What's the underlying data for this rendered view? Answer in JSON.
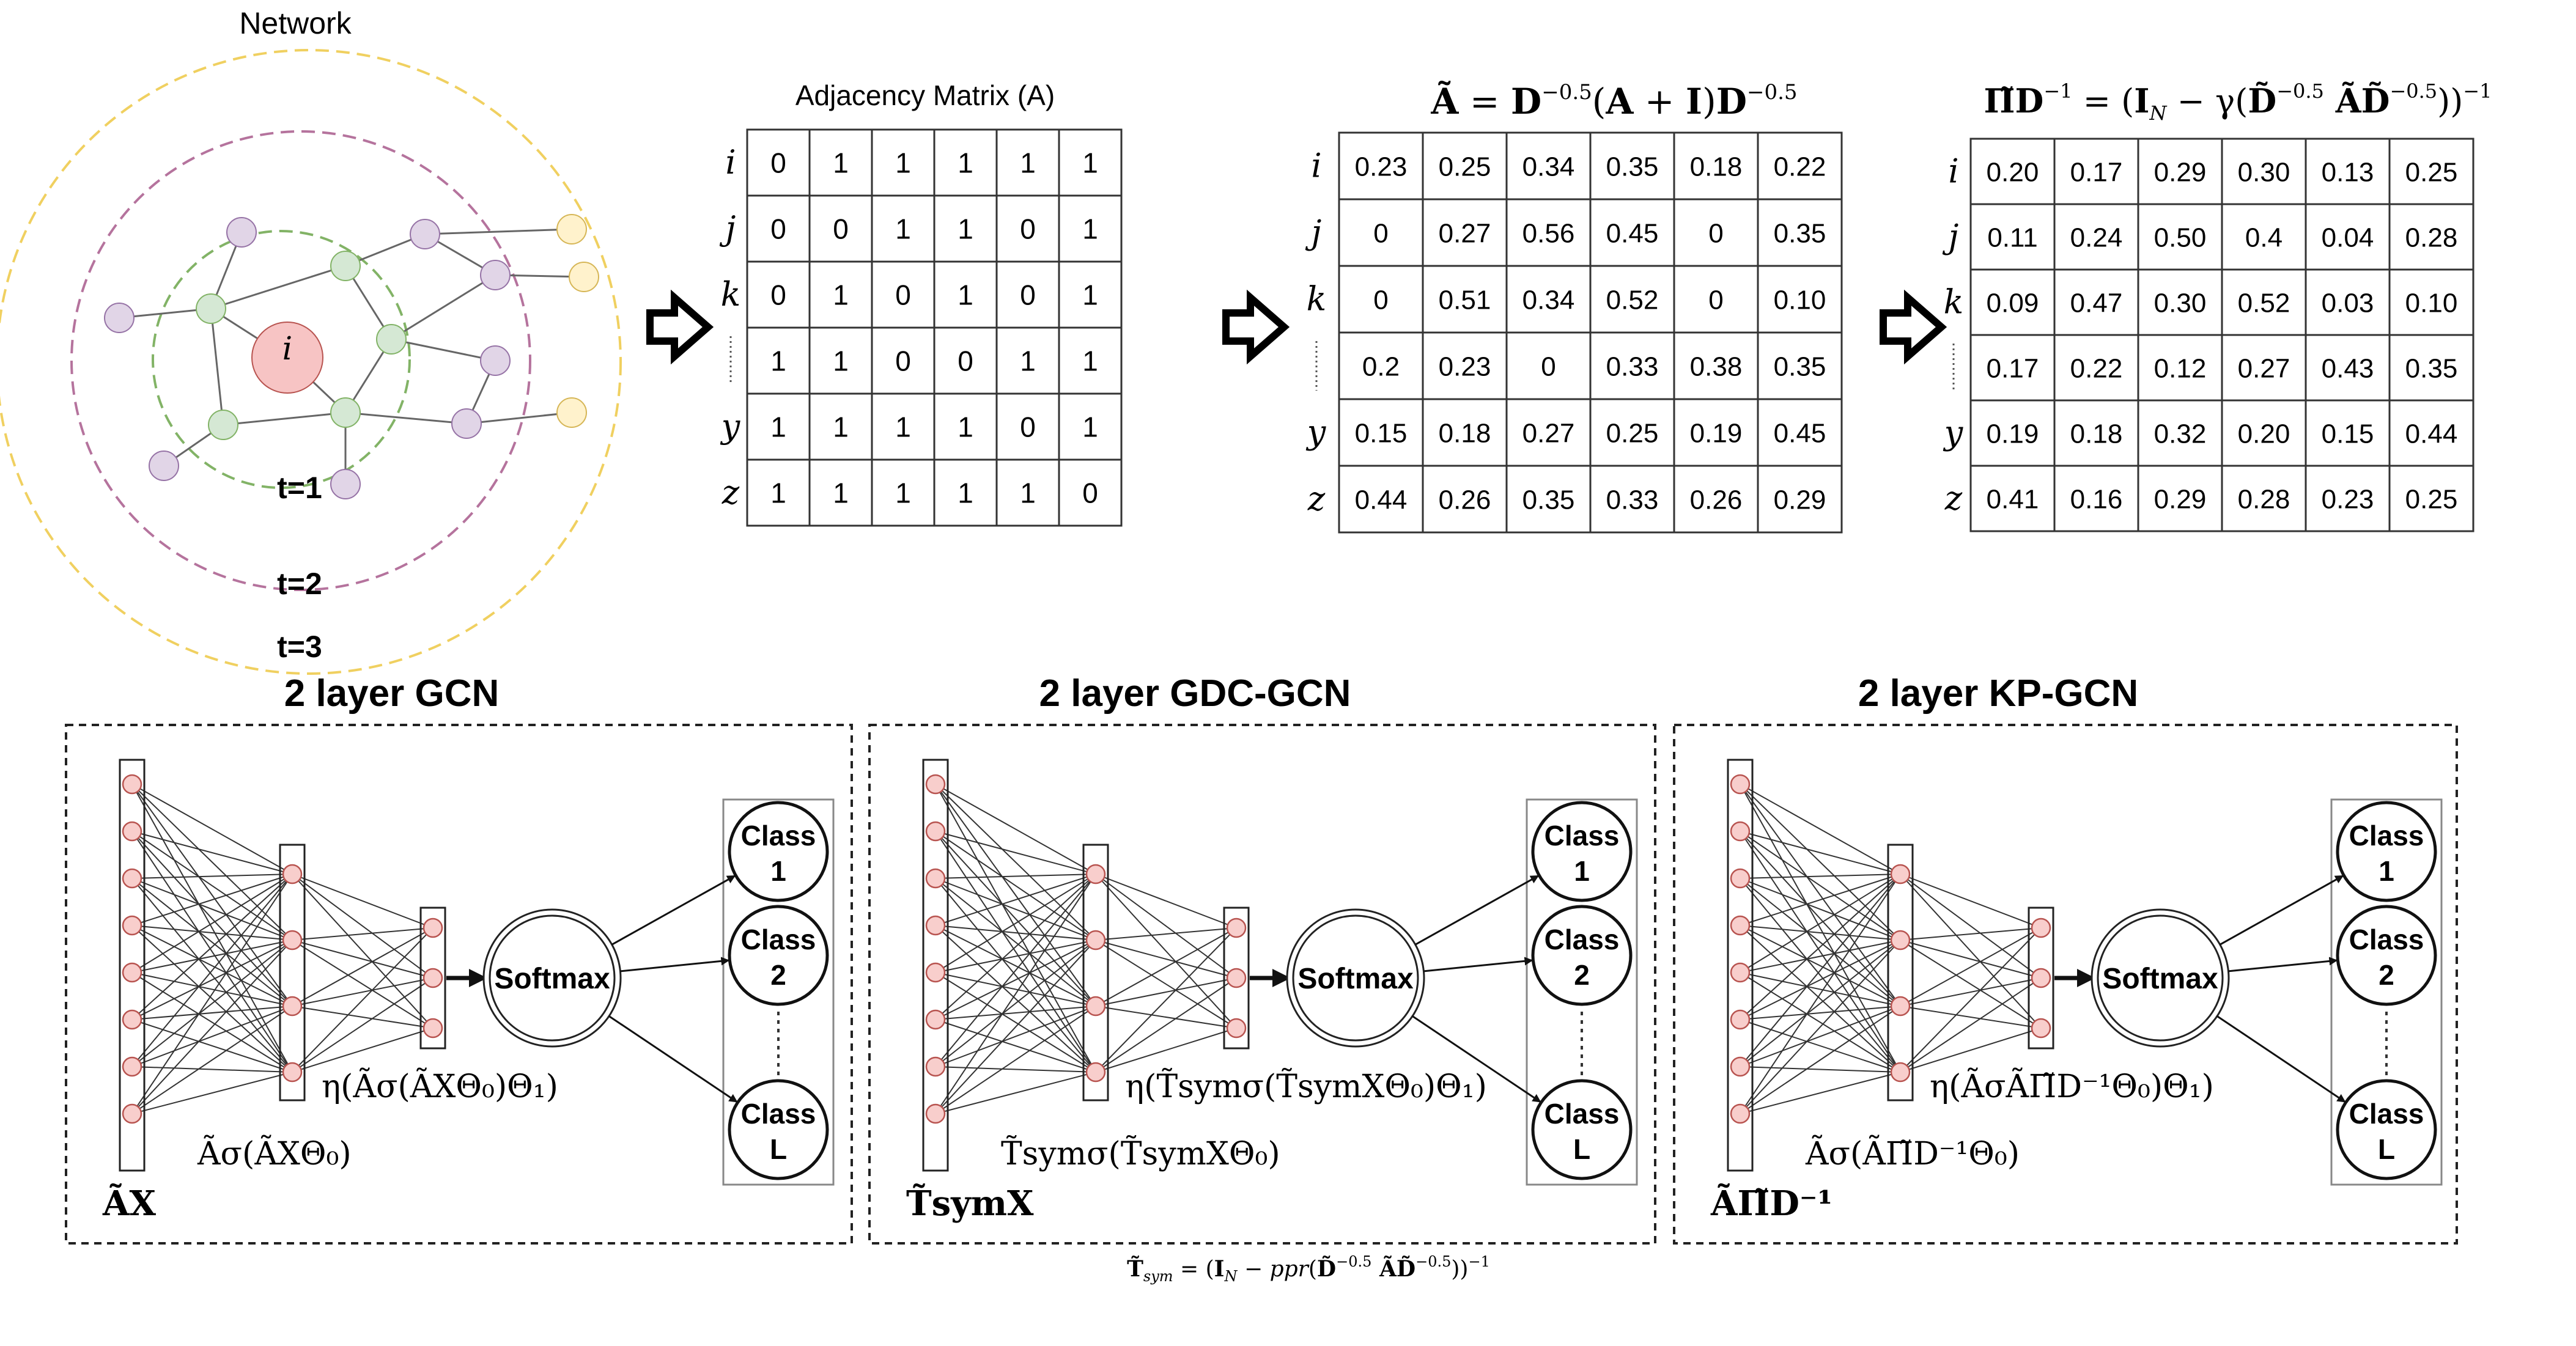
{
  "network": {
    "title": "Network",
    "center_label": "i",
    "rings": [
      "t=1",
      "t=2",
      "t=3"
    ],
    "colors": {
      "center": "#f7c4c4",
      "hop1": "#d5e8d4",
      "hop2": "#e1d5e7",
      "hop3": "#fff2cc",
      "ring1": "#82b366",
      "ring2": "#b5739d",
      "ring3": "#f0d060"
    }
  },
  "matrices": {
    "row_labels": [
      "i",
      "j",
      "k",
      "⋮",
      "y",
      "z"
    ],
    "adjacency": {
      "title": "Adjacency Matrix (A)",
      "rows": [
        [
          "0",
          "1",
          "1",
          "1",
          "1",
          "1"
        ],
        [
          "0",
          "0",
          "1",
          "1",
          "0",
          "1"
        ],
        [
          "0",
          "1",
          "0",
          "1",
          "0",
          "1"
        ],
        [
          "1",
          "1",
          "0",
          "0",
          "1",
          "1"
        ],
        [
          "1",
          "1",
          "1",
          "1",
          "0",
          "1"
        ],
        [
          "1",
          "1",
          "1",
          "1",
          "1",
          "0"
        ]
      ]
    },
    "normalized": {
      "title": "Ã = D^{-0.5}(A + I)D^{-0.5}",
      "rows": [
        [
          "0.23",
          "0.25",
          "0.34",
          "0.35",
          "0.18",
          "0.22"
        ],
        [
          "0",
          "0.27",
          "0.56",
          "0.45",
          "0",
          "0.35"
        ],
        [
          "0",
          "0.51",
          "0.34",
          "0.52",
          "0",
          "0.10"
        ],
        [
          "0.2",
          "0.23",
          "0",
          "0.33",
          "0.38",
          "0.35"
        ],
        [
          "0.15",
          "0.18",
          "0.27",
          "0.25",
          "0.19",
          "0.45"
        ],
        [
          "0.44",
          "0.26",
          "0.35",
          "0.33",
          "0.26",
          "0.29"
        ]
      ]
    },
    "kp": {
      "title": "Π̃D^{-1} = (I_N − γ(D̃^{-0.5} Ã D̃^{-0.5}))^{-1}",
      "rows": [
        [
          "0.20",
          "0.17",
          "0.29",
          "0.30",
          "0.13",
          "0.25"
        ],
        [
          "0.11",
          "0.24",
          "0.50",
          "0.4",
          "0.04",
          "0.28"
        ],
        [
          "0.09",
          "0.47",
          "0.30",
          "0.52",
          "0.03",
          "0.10"
        ],
        [
          "0.17",
          "0.22",
          "0.12",
          "0.27",
          "0.43",
          "0.35"
        ],
        [
          "0.19",
          "0.18",
          "0.32",
          "0.20",
          "0.15",
          "0.44"
        ],
        [
          "0.41",
          "0.16",
          "0.29",
          "0.28",
          "0.23",
          "0.25"
        ]
      ]
    }
  },
  "models": [
    {
      "title": "2 layer GCN",
      "input_label": "ÃX",
      "hidden_label": "Ãσ(ÃXΘ₀)",
      "output_label": "η(Ãσ(ÃXΘ₀)Θ₁)",
      "softmax": "Softmax",
      "classes": [
        [
          "Class",
          "1"
        ],
        [
          "Class",
          "2"
        ],
        [
          "Class",
          "L"
        ]
      ]
    },
    {
      "title": "2 layer GDC-GCN",
      "input_label": "T̃symX",
      "hidden_label": "T̃symσ(T̃symXΘ₀)",
      "output_label": "η(T̃symσ(T̃symXΘ₀)Θ₁)",
      "softmax": "Softmax",
      "classes": [
        [
          "Class",
          "1"
        ],
        [
          "Class",
          "2"
        ],
        [
          "Class",
          "L"
        ]
      ]
    },
    {
      "title": "2 layer KP-GCN",
      "input_label": "ÃΠ̃D⁻¹",
      "hidden_label": "Ãσ(ÃΠ̃D⁻¹Θ₀)",
      "output_label": "η(ÃσÃΠ̃D⁻¹Θ₀)Θ₁)",
      "softmax": "Softmax",
      "classes": [
        [
          "Class",
          "1"
        ],
        [
          "Class",
          "2"
        ],
        [
          "Class",
          "L"
        ]
      ]
    }
  ],
  "footnote": "T̃sym = (I_N − ppr(D̃^{-0.5} Ã D̃^{-0.5}))^{-1}",
  "colors": {
    "neuron": "#f8cecc",
    "neuron_stroke": "#b85450",
    "line": "#333333"
  }
}
